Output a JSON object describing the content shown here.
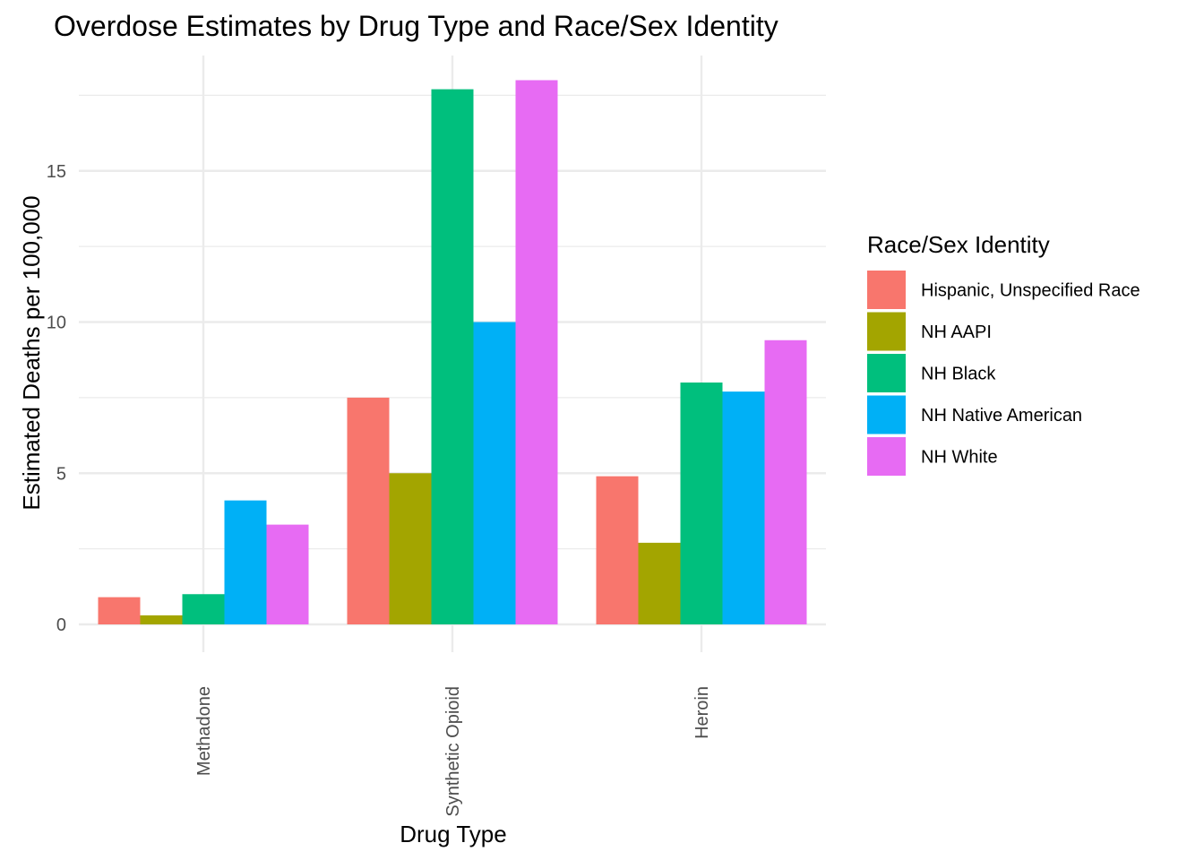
{
  "chart_data": {
    "type": "bar",
    "title": "Overdose Estimates by Drug Type and Race/Sex Identity",
    "xlabel": "Drug Type",
    "ylabel": "Estimated Deaths per 100,000",
    "categories": [
      "Methadone",
      "Synthetic Opioid",
      "Heroin"
    ],
    "ylim": [
      0,
      18.5
    ],
    "yticks": [
      0,
      5,
      10,
      15
    ],
    "grid": true,
    "legend": {
      "title": "Race/Sex Identity",
      "placement": "right"
    },
    "series": [
      {
        "name": "Hispanic, Unspecified Race",
        "color": "#F8766D",
        "values": [
          0.9,
          7.5,
          4.9
        ]
      },
      {
        "name": "NH AAPI",
        "color": "#A3A500",
        "values": [
          0.3,
          5.0,
          2.7
        ]
      },
      {
        "name": "NH Black",
        "color": "#00BF7D",
        "values": [
          1.0,
          17.7,
          8.0
        ]
      },
      {
        "name": "NH Native American",
        "color": "#00B0F6",
        "values": [
          4.1,
          10.0,
          7.7
        ]
      },
      {
        "name": "NH White",
        "color": "#E76BF3",
        "values": [
          3.3,
          18.0,
          9.4
        ]
      }
    ]
  }
}
